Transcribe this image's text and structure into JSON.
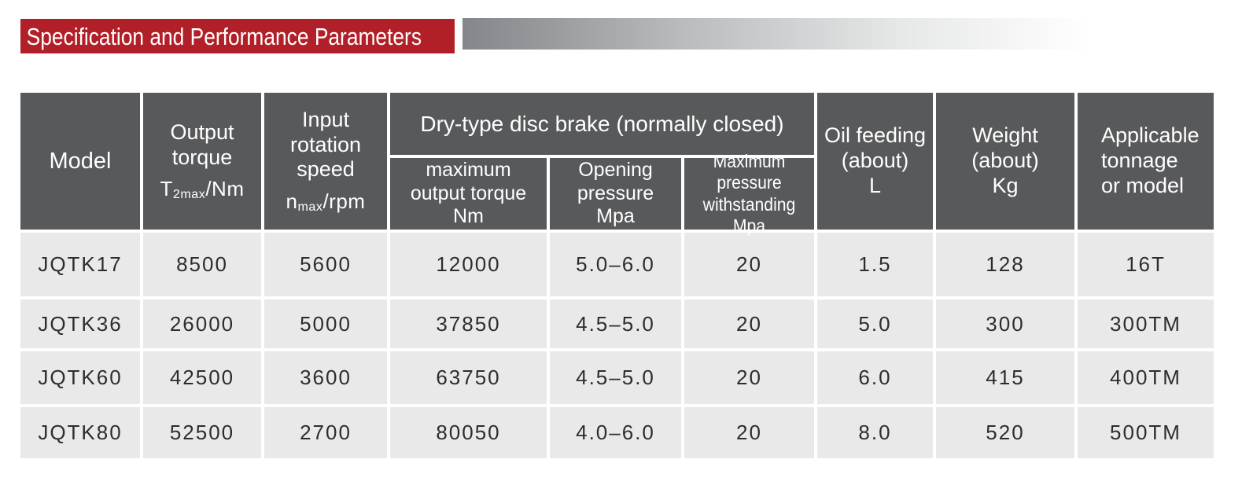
{
  "title": "Specification and Performance Parameters",
  "colors": {
    "accent_red": "#b12028",
    "header_gray": "#58595b",
    "row_gray": "#e9e9e9",
    "gradient_start": "#83868a",
    "gradient_end": "#ffffff"
  },
  "table": {
    "header": {
      "model": "Model",
      "output_torque": {
        "lines": [
          "Output",
          "torque"
        ],
        "sym_base": "T",
        "sym_sub": "2max",
        "sym_rest": "/Nm"
      },
      "input_speed": {
        "lines": [
          "Input",
          "rotation",
          "speed"
        ],
        "sym_base": "n",
        "sym_sub": "max",
        "sym_rest": "/rpm"
      },
      "brake_group": "Dry-type disc brake (normally closed)",
      "brake_cols": [
        {
          "lines": [
            "maximum",
            "output torque",
            "Nm"
          ]
        },
        {
          "lines": [
            "Opening",
            "pressure",
            "Mpa"
          ]
        },
        {
          "lines": [
            "Maximum pressure",
            "withstanding",
            "Mpa"
          ]
        }
      ],
      "oil_feeding": {
        "lines": [
          "Oil feeding",
          "(about)",
          "L"
        ]
      },
      "weight": {
        "lines": [
          "Weight",
          "(about)",
          "Kg"
        ]
      },
      "applicable": {
        "lines": [
          "Applicable",
          "tonnage",
          "or model"
        ]
      }
    },
    "rows": [
      [
        "JQTK17",
        "8500",
        "5600",
        "12000",
        "5.0–6.0",
        "20",
        "1.5",
        "128",
        "16T"
      ],
      [
        "JQTK36",
        "26000",
        "5000",
        "37850",
        "4.5–5.0",
        "20",
        "5.0",
        "300",
        "300TM"
      ],
      [
        "JQTK60",
        "42500",
        "3600",
        "63750",
        "4.5–5.0",
        "20",
        "6.0",
        "415",
        "400TM"
      ],
      [
        "JQTK80",
        "52500",
        "2700",
        "80050",
        "4.0–6.0",
        "20",
        "8.0",
        "520",
        "500TM"
      ]
    ]
  }
}
